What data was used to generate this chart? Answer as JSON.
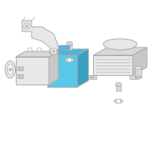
{
  "bg_color": "#ffffff",
  "line_color": "#aaaaaa",
  "blue_fill": "#5bc8e8",
  "blue_top": "#4ab8d8",
  "blue_right": "#3aa0c0",
  "gray_fill": "#e8e8e8",
  "gray_mid": "#d8d8d8",
  "gray_dark": "#c8c8c8",
  "figsize": [
    2.0,
    2.0
  ],
  "dpi": 100
}
